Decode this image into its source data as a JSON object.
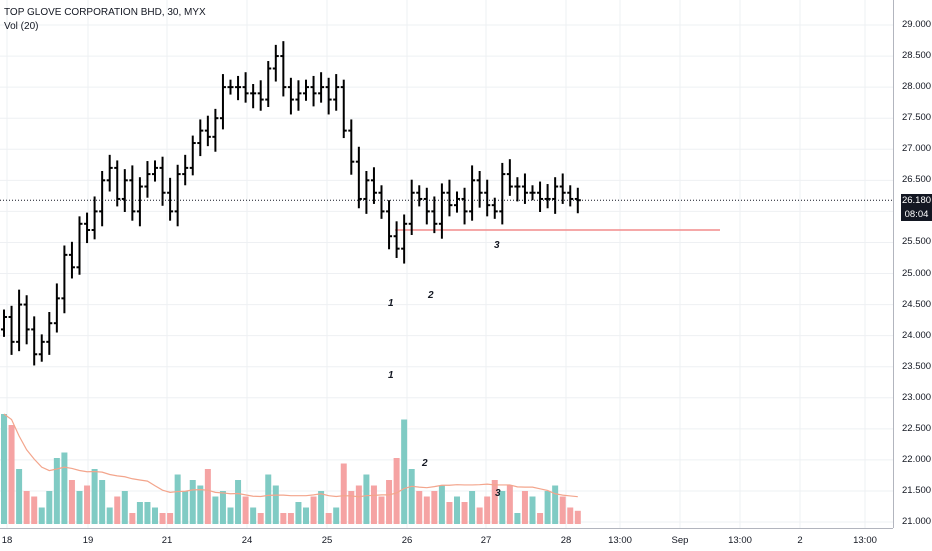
{
  "legend": {
    "title": "TOP GLOVE CORPORATION BHD, 30, MYX",
    "indicator": "Vol (20)"
  },
  "price_axis_ticks": [
    "29.000",
    "28.500",
    "28.000",
    "27.500",
    "27.000",
    "26.500",
    "26.000",
    "25.500",
    "25.000",
    "24.500",
    "24.000",
    "23.500",
    "23.000",
    "22.500",
    "22.000",
    "21.500",
    "21.000"
  ],
  "time_axis_ticks": [
    "18",
    "19",
    "21",
    "24",
    "25",
    "26",
    "27",
    "28",
    "13:00",
    "Sep",
    "13:00",
    "2",
    "13:00"
  ],
  "last_price": "26.180",
  "countdown": "08:04",
  "annotations": {
    "price": [
      "1",
      "2",
      "3"
    ],
    "volume": [
      "1",
      "2",
      "3"
    ]
  },
  "colors": {
    "bar": "#000000",
    "vol_up": "#80cbc4",
    "vol_down": "#f5a3a3",
    "vol_ma": "#f3a58c",
    "support_line": "#f28c8c",
    "axis_text": "#131722"
  },
  "chart_data": {
    "type": "ohlc_bar_with_volume",
    "interval": "30 minutes",
    "price_scale": [
      21.0,
      29.0
    ],
    "close_series": [
      24.3,
      23.9,
      24.5,
      24.1,
      23.7,
      23.9,
      24.2,
      24.6,
      25.3,
      25.1,
      25.8,
      25.7,
      26.0,
      26.5,
      26.7,
      26.2,
      26.5,
      26.0,
      26.4,
      26.6,
      26.7,
      26.3,
      26.0,
      26.6,
      26.7,
      27.1,
      27.3,
      27.2,
      27.5,
      28.0,
      28.0,
      28.0,
      27.9,
      27.9,
      27.8,
      28.3,
      28.5,
      28.0,
      27.8,
      27.9,
      28.0,
      27.9,
      28.0,
      27.8,
      28.0,
      27.3,
      26.8,
      26.2,
      26.5,
      26.3,
      26.0,
      25.6,
      25.4,
      25.8,
      26.3,
      26.2,
      26.0,
      25.8,
      26.3,
      26.1,
      26.2,
      26.0,
      26.5,
      26.3,
      26.1,
      26.0,
      26.6,
      26.4,
      26.4,
      26.3,
      26.3,
      26.2,
      26.2,
      26.4,
      26.3,
      26.2,
      26.18
    ],
    "volume_series": [
      1.0,
      0.9,
      0.5,
      0.3,
      0.25,
      0.15,
      0.3,
      0.6,
      0.65,
      0.4,
      0.3,
      0.35,
      0.5,
      0.4,
      0.15,
      0.25,
      0.3,
      0.1,
      0.2,
      0.2,
      0.15,
      0.1,
      0.1,
      0.45,
      0.3,
      0.4,
      0.35,
      0.5,
      0.25,
      0.3,
      0.15,
      0.4,
      0.25,
      0.15,
      0.1,
      0.45,
      0.35,
      0.1,
      0.1,
      0.2,
      0.15,
      0.25,
      0.3,
      0.1,
      0.15,
      0.55,
      0.3,
      0.35,
      0.45,
      0.35,
      0.25,
      0.4,
      0.6,
      0.95,
      0.5,
      0.3,
      0.25,
      0.3,
      0.35,
      0.2,
      0.25,
      0.2,
      0.3,
      0.15,
      0.25,
      0.4,
      0.3,
      0.35,
      0.1,
      0.3,
      0.25,
      0.1,
      0.3,
      0.35,
      0.25,
      0.15,
      0.12
    ],
    "support_level": 25.7,
    "last_price": 26.18
  }
}
